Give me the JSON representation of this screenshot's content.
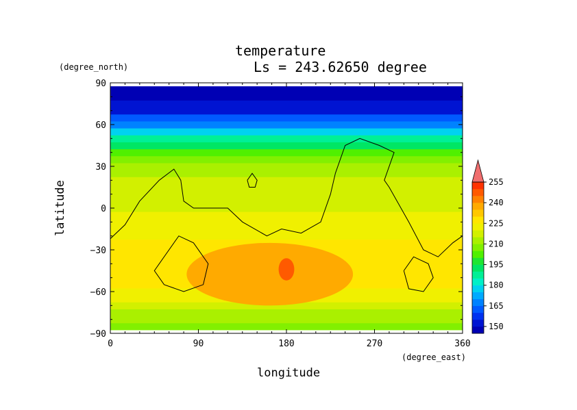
{
  "chart_data": {
    "type": "heatmap",
    "title": "temperature",
    "subtitle": "Ls = 243.62650 degree",
    "xlabel": "longitude",
    "ylabel": "latitude",
    "xunit": "(degree_east)",
    "yunit": "(degree_north)",
    "xlim": [
      0,
      360
    ],
    "ylim": [
      -90,
      90
    ],
    "xticks": [
      "0",
      "90",
      "180",
      "270",
      "360"
    ],
    "yticks": [
      "90",
      "60",
      "30",
      "0",
      "−30",
      "−60",
      "−90"
    ],
    "xtick_values": [
      0,
      90,
      180,
      270,
      360
    ],
    "ytick_values": [
      90,
      60,
      30,
      0,
      -30,
      -60,
      -90
    ],
    "colorbar": {
      "levels": [
        145,
        150,
        155,
        160,
        165,
        170,
        175,
        180,
        185,
        190,
        195,
        200,
        205,
        210,
        215,
        220,
        225,
        230,
        235,
        240,
        245,
        250,
        255,
        260
      ],
      "tick_values": [
        150,
        165,
        180,
        195,
        210,
        225,
        240,
        255
      ],
      "tick_labels": [
        "150",
        "165",
        "180",
        "195",
        "210",
        "225",
        "240",
        "255"
      ],
      "colors": [
        "#0000b4",
        "#0014d2",
        "#0032f0",
        "#005aff",
        "#0082ff",
        "#00aaff",
        "#00d2f0",
        "#00f0c8",
        "#00f096",
        "#00e664",
        "#1ee632",
        "#50f000",
        "#82f000",
        "#aaf000",
        "#d2f000",
        "#f0f000",
        "#ffe600",
        "#ffc800",
        "#ffaa00",
        "#ff8200",
        "#ff5a00",
        "#ff3200",
        "#ff0000",
        "#f06e6e"
      ],
      "extend": "max"
    },
    "lat_profile": {
      "lat": [
        -85,
        -80,
        -75,
        -70,
        -65,
        -60,
        -55,
        -50,
        -45,
        -40,
        -35,
        -30,
        -25,
        -20,
        -15,
        -10,
        -5,
        0,
        5,
        10,
        15,
        20,
        25,
        30,
        35,
        40,
        45,
        50,
        55,
        60,
        65,
        70,
        75,
        80,
        85
      ],
      "temp": [
        208,
        210,
        213,
        218,
        222,
        224,
        226,
        227,
        229,
        229,
        228,
        227,
        225,
        223,
        222,
        221,
        220,
        219,
        218,
        217,
        216,
        215,
        213,
        210,
        206,
        201,
        194,
        186,
        177,
        168,
        160,
        154,
        150,
        147,
        146
      ]
    },
    "warm_regions": [
      {
        "label": "235",
        "lon": [
          78,
          248
        ],
        "lat": [
          -70,
          -25
        ]
      },
      {
        "label": "245",
        "lon": [
          172,
          188
        ],
        "lat": [
          -52,
          -36
        ]
      }
    ],
    "topography_contours": [
      [
        [
          0,
          -22
        ],
        [
          15,
          -12
        ],
        [
          30,
          5
        ],
        [
          50,
          20
        ],
        [
          65,
          28
        ],
        [
          72,
          20
        ],
        [
          75,
          5
        ],
        [
          85,
          0
        ],
        [
          105,
          0
        ],
        [
          120,
          0
        ],
        [
          135,
          -10
        ],
        [
          160,
          -20
        ],
        [
          175,
          -15
        ],
        [
          195,
          -18
        ],
        [
          215,
          -10
        ],
        [
          225,
          10
        ],
        [
          230,
          25
        ],
        [
          240,
          45
        ],
        [
          255,
          50
        ],
        [
          275,
          45
        ],
        [
          290,
          40
        ],
        [
          280,
          20
        ],
        [
          285,
          15
        ],
        [
          305,
          -10
        ],
        [
          320,
          -30
        ],
        [
          335,
          -35
        ],
        [
          350,
          -25
        ],
        [
          360,
          -20
        ]
      ],
      [
        [
          140,
          20
        ],
        [
          145,
          25
        ],
        [
          150,
          20
        ],
        [
          148,
          15
        ],
        [
          142,
          15
        ],
        [
          140,
          20
        ]
      ],
      [
        [
          50,
          -40
        ],
        [
          70,
          -20
        ],
        [
          85,
          -25
        ],
        [
          100,
          -40
        ],
        [
          95,
          -55
        ],
        [
          75,
          -60
        ],
        [
          55,
          -55
        ],
        [
          45,
          -45
        ],
        [
          50,
          -40
        ]
      ],
      [
        [
          300,
          -45
        ],
        [
          310,
          -35
        ],
        [
          325,
          -40
        ],
        [
          330,
          -50
        ],
        [
          320,
          -60
        ],
        [
          305,
          -58
        ],
        [
          300,
          -45
        ]
      ]
    ]
  }
}
